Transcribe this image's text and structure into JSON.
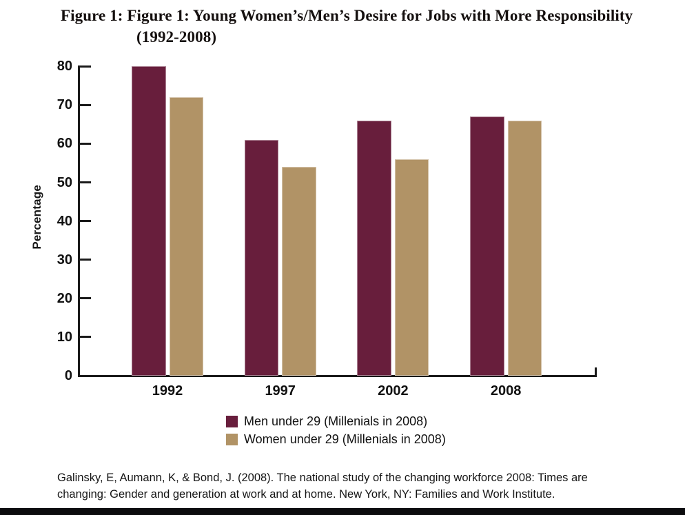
{
  "figure": {
    "title_line1": "Figure 1: Figure 1: Young Women’s/Men’s Desire for Jobs with More Responsibility",
    "title_line2": "(1992-2008)"
  },
  "chart_data": {
    "type": "bar",
    "title": "Figure 1: Young Women’s/Men’s Desire for Jobs with More Responsibility (1992-2008)",
    "categories": [
      "1992",
      "1997",
      "2002",
      "2008"
    ],
    "series": [
      {
        "name": "Men under 29 (Millenials in 2008)",
        "color": "#681e3c",
        "values": [
          80,
          61,
          66,
          67
        ]
      },
      {
        "name": "Women under 29 (Millenials in 2008)",
        "color": "#b19366",
        "values": [
          72,
          54,
          56,
          66
        ]
      }
    ],
    "xlabel": "",
    "ylabel": "Percentage",
    "ylim": [
      0,
      80
    ],
    "yticks": [
      0,
      10,
      20,
      30,
      40,
      50,
      60,
      70,
      80
    ],
    "grid": false,
    "legend_position": "bottom-center"
  },
  "citation": {
    "line1": "Galinsky, E, Aumann, K, & Bond, J. (2008). The national study of the changing workforce 2008: Times are",
    "line2": "changing: Gender and generation at work and at home. New York, NY: Families and Work Institute."
  },
  "colors": {
    "men_bar": "#681e3c",
    "women_bar": "#b19366",
    "axis": "#1a1a1a",
    "text": "#111111",
    "footer_bar": "#0c0c0e",
    "background": "#ffffff"
  }
}
